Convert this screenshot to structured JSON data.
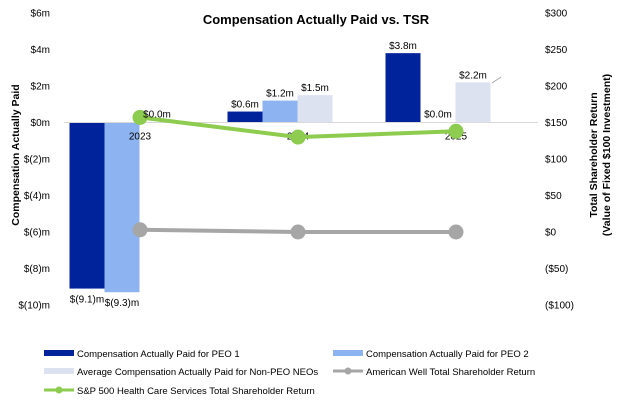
{
  "chart_data": {
    "type": "bar",
    "title": "Compensation Actually Paid vs. TSR",
    "ylabel": "Compensation Actually Paid",
    "y2label_line1": "Total Shareholder Return",
    "y2label_line2": "(Value of Fixed $100 Investment)",
    "categories": [
      "2023",
      "2024",
      "2025"
    ],
    "ylim": [
      -10,
      6
    ],
    "y2lim": [
      -100,
      300
    ],
    "yticks": [
      6,
      4,
      2,
      0,
      -2,
      -4,
      -6,
      -8,
      -10
    ],
    "ytick_labels": [
      "$6m",
      "$4m",
      "$2m",
      "$0m",
      "$(2)m",
      "$(4)m",
      "$(6)m",
      "$(8)m",
      "$(10)m"
    ],
    "y2ticks": [
      300,
      250,
      200,
      150,
      100,
      50,
      0,
      -50,
      -100
    ],
    "y2tick_labels": [
      "$300",
      "$250",
      "$200",
      "$150",
      "$100",
      "$50",
      "$0",
      "($50)",
      "($100)"
    ],
    "bar_series": [
      {
        "name": "Compensation Actually Paid for PEO 1",
        "color": "#00239c",
        "values": [
          -9.1,
          0.6,
          3.8
        ],
        "labels": [
          "$(9.1)m",
          "$0.6m",
          "$3.8m"
        ]
      },
      {
        "name": "Compensation Actually Paid for PEO 2",
        "color": "#8db4f0",
        "values": [
          -9.3,
          1.2,
          0.0
        ],
        "labels": [
          "$(9.3)m",
          "$1.2m",
          "$0.0m"
        ]
      },
      {
        "name": "Average Compensation Actually Paid for Non-PEO NEOs",
        "color": "#dde2f0",
        "values": [
          0.0,
          1.5,
          2.2
        ],
        "labels": [
          "$0.0m",
          "$1.5m",
          "$2.2m"
        ]
      }
    ],
    "line_series": [
      {
        "name": "American Well Total Shareholder Return",
        "color": "#a6a6a6",
        "values": [
          3,
          0,
          0
        ]
      },
      {
        "name": "S&P 500 Health Care Services Total Shareholder Return",
        "color": "#8dcc4e",
        "values": [
          157,
          130,
          138
        ]
      }
    ],
    "legend_position": "bottom",
    "grid": false
  }
}
